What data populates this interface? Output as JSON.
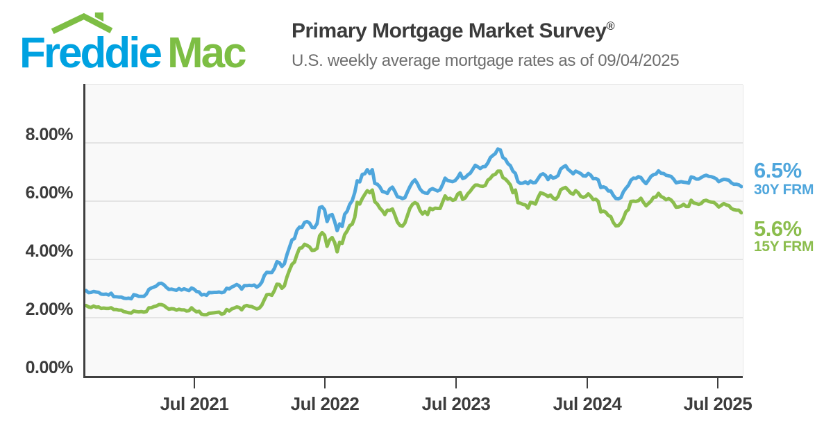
{
  "header": {
    "logo": {
      "word1": "Freddie",
      "word2": "Mac",
      "blue": "#00A2E1",
      "green": "#7DBE44",
      "roof_icon": "house-roof"
    },
    "title": "Primary Mortgage Market Survey",
    "registered_mark": "®",
    "subtitle": "U.S. weekly average mortgage rates as of 09/04/2025"
  },
  "chart_data": {
    "type": "line",
    "title": "Primary Mortgage Market Survey",
    "xlabel": "",
    "ylabel": "",
    "x_start": "2020-09-03",
    "x_end": "2025-09-04",
    "x_step_days": 7,
    "ylim": [
      0,
      10
    ],
    "grid": "horizontal",
    "grid_color": "#E4E4E4",
    "plot_bg": "#F9F9F9",
    "axis_color": "#3F3F3F",
    "legend_position": "right-of-line-end",
    "yticks": [
      {
        "value": 8,
        "label": "8.00%"
      },
      {
        "value": 6,
        "label": "6.00%"
      },
      {
        "value": 4,
        "label": "4.00%"
      },
      {
        "value": 2,
        "label": "2.00%"
      },
      {
        "value": 0,
        "label": "0.00%"
      }
    ],
    "xticks": [
      {
        "date": "2021-07-01",
        "label": "Jul 2021"
      },
      {
        "date": "2022-07-01",
        "label": "Jul 2022"
      },
      {
        "date": "2023-07-01",
        "label": "Jul 2023"
      },
      {
        "date": "2024-07-01",
        "label": "Jul 2024"
      },
      {
        "date": "2025-07-01",
        "label": "Jul 2025"
      }
    ],
    "series": [
      {
        "id": "30y-frm",
        "name": "30Y FRM",
        "current_label": "6.5%",
        "color": "#4FA6DC",
        "values": [
          2.93,
          2.86,
          2.87,
          2.9,
          2.88,
          2.87,
          2.81,
          2.8,
          2.81,
          2.78,
          2.84,
          2.72,
          2.72,
          2.71,
          2.71,
          2.67,
          2.66,
          2.67,
          2.65,
          2.79,
          2.77,
          2.73,
          2.73,
          2.73,
          2.81,
          2.97,
          3.02,
          3.05,
          3.09,
          3.17,
          3.18,
          3.13,
          3.04,
          2.97,
          2.98,
          2.96,
          2.94,
          3.0,
          2.95,
          2.99,
          2.96,
          2.93,
          3.02,
          2.98,
          2.9,
          2.88,
          2.78,
          2.8,
          2.77,
          2.87,
          2.86,
          2.87,
          2.87,
          2.88,
          2.86,
          2.88,
          3.01,
          2.99,
          3.05,
          3.09,
          3.14,
          3.09,
          2.98,
          3.1,
          3.1,
          3.11,
          3.1,
          3.12,
          3.05,
          3.11,
          3.22,
          3.45,
          3.56,
          3.55,
          3.55,
          3.69,
          3.92,
          3.89,
          3.76,
          3.85,
          4.16,
          4.42,
          4.67,
          4.72,
          5.0,
          5.11,
          5.1,
          5.27,
          5.3,
          5.25,
          5.1,
          5.09,
          5.23,
          5.78,
          5.81,
          5.7,
          5.3,
          5.51,
          5.54,
          5.3,
          4.99,
          5.22,
          5.13,
          5.55,
          5.66,
          5.89,
          6.02,
          6.29,
          6.7,
          6.66,
          6.92,
          6.94,
          7.08,
          6.95,
          7.08,
          6.61,
          6.58,
          6.49,
          6.33,
          6.31,
          6.27,
          6.42,
          6.48,
          6.33,
          6.15,
          6.13,
          6.09,
          6.12,
          6.32,
          6.5,
          6.65,
          6.73,
          6.6,
          6.42,
          6.32,
          6.28,
          6.27,
          6.39,
          6.43,
          6.39,
          6.35,
          6.39,
          6.57,
          6.79,
          6.71,
          6.69,
          6.67,
          6.71,
          6.81,
          6.96,
          6.78,
          6.81,
          6.9,
          6.96,
          7.09,
          7.23,
          7.18,
          7.12,
          7.18,
          7.19,
          7.31,
          7.49,
          7.57,
          7.63,
          7.79,
          7.76,
          7.5,
          7.44,
          7.29,
          7.22,
          7.03,
          6.95,
          6.67,
          6.61,
          6.62,
          6.66,
          6.6,
          6.69,
          6.63,
          6.64,
          6.77,
          6.9,
          6.94,
          6.88,
          6.74,
          6.87,
          6.79,
          6.82,
          6.88,
          7.1,
          7.17,
          7.22,
          7.09,
          7.02,
          6.94,
          7.03,
          6.99,
          6.95,
          6.87,
          6.86,
          6.95,
          6.89,
          6.77,
          6.78,
          6.73,
          6.47,
          6.49,
          6.46,
          6.35,
          6.35,
          6.2,
          6.09,
          6.08,
          6.12,
          6.32,
          6.44,
          6.54,
          6.72,
          6.79,
          6.78,
          6.84,
          6.81,
          6.69,
          6.6,
          6.72,
          6.85,
          6.91,
          6.93,
          7.04,
          6.96,
          6.95,
          6.89,
          6.87,
          6.85,
          6.76,
          6.63,
          6.65,
          6.67,
          6.65,
          6.64,
          6.62,
          6.83,
          6.81,
          6.76,
          6.76,
          6.81,
          6.86,
          6.89,
          6.85,
          6.84,
          6.81,
          6.77,
          6.67,
          6.72,
          6.75,
          6.74,
          6.72,
          6.63,
          6.58,
          6.58,
          6.56,
          6.5
        ]
      },
      {
        "id": "15y-frm",
        "name": "15Y FRM",
        "current_label": "5.6%",
        "color": "#8BBD4D",
        "values": [
          2.42,
          2.37,
          2.35,
          2.4,
          2.36,
          2.37,
          2.32,
          2.33,
          2.32,
          2.32,
          2.34,
          2.28,
          2.28,
          2.26,
          2.26,
          2.21,
          2.19,
          2.17,
          2.16,
          2.23,
          2.21,
          2.2,
          2.21,
          2.19,
          2.21,
          2.34,
          2.34,
          2.38,
          2.4,
          2.45,
          2.45,
          2.42,
          2.35,
          2.29,
          2.31,
          2.3,
          2.26,
          2.29,
          2.27,
          2.27,
          2.23,
          2.24,
          2.34,
          2.26,
          2.2,
          2.22,
          2.12,
          2.1,
          2.1,
          2.15,
          2.16,
          2.17,
          2.18,
          2.19,
          2.12,
          2.15,
          2.28,
          2.23,
          2.3,
          2.33,
          2.37,
          2.35,
          2.27,
          2.39,
          2.42,
          2.39,
          2.38,
          2.34,
          2.3,
          2.33,
          2.43,
          2.62,
          2.79,
          2.8,
          2.77,
          2.93,
          3.15,
          3.14,
          3.01,
          3.09,
          3.39,
          3.63,
          3.83,
          3.91,
          4.17,
          4.38,
          4.4,
          4.52,
          4.48,
          4.43,
          4.31,
          4.32,
          4.38,
          4.81,
          4.92,
          4.83,
          4.45,
          4.67,
          4.75,
          4.58,
          4.26,
          4.59,
          4.55,
          4.85,
          4.98,
          5.16,
          5.21,
          5.44,
          5.96,
          5.9,
          6.09,
          6.23,
          6.36,
          6.29,
          6.38,
          5.98,
          5.9,
          5.76,
          5.67,
          5.54,
          5.69,
          5.68,
          5.73,
          5.52,
          5.28,
          5.17,
          5.14,
          5.25,
          5.51,
          5.76,
          5.89,
          5.95,
          5.9,
          5.68,
          5.56,
          5.64,
          5.54,
          5.76,
          5.71,
          5.76,
          5.75,
          5.75,
          5.97,
          6.18,
          6.07,
          6.1,
          6.03,
          6.06,
          6.24,
          6.3,
          6.06,
          6.11,
          6.25,
          6.34,
          6.46,
          6.55,
          6.55,
          6.52,
          6.51,
          6.54,
          6.72,
          6.78,
          6.89,
          6.92,
          7.03,
          7.03,
          6.81,
          6.76,
          6.67,
          6.56,
          6.29,
          6.38,
          5.95,
          5.93,
          5.89,
          5.87,
          5.76,
          5.96,
          5.94,
          5.9,
          6.12,
          6.29,
          6.26,
          6.22,
          6.16,
          6.21,
          6.11,
          6.06,
          6.16,
          6.39,
          6.44,
          6.47,
          6.38,
          6.28,
          6.24,
          6.36,
          6.29,
          6.17,
          6.13,
          6.16,
          6.25,
          6.17,
          6.05,
          6.07,
          5.99,
          5.63,
          5.66,
          5.62,
          5.51,
          5.47,
          5.27,
          5.15,
          5.16,
          5.25,
          5.41,
          5.63,
          5.71,
          5.99,
          6.0,
          5.99,
          6.02,
          6.1,
          5.96,
          5.84,
          5.92,
          6.0,
          6.13,
          6.14,
          6.27,
          6.16,
          6.12,
          6.05,
          6.09,
          6.04,
          5.94,
          5.79,
          5.8,
          5.83,
          5.89,
          5.82,
          5.82,
          6.03,
          5.94,
          5.92,
          5.89,
          5.92,
          6.01,
          6.03,
          5.99,
          5.97,
          5.96,
          5.89,
          5.8,
          5.86,
          5.92,
          5.87,
          5.85,
          5.75,
          5.71,
          5.69,
          5.69,
          5.6
        ]
      }
    ]
  }
}
